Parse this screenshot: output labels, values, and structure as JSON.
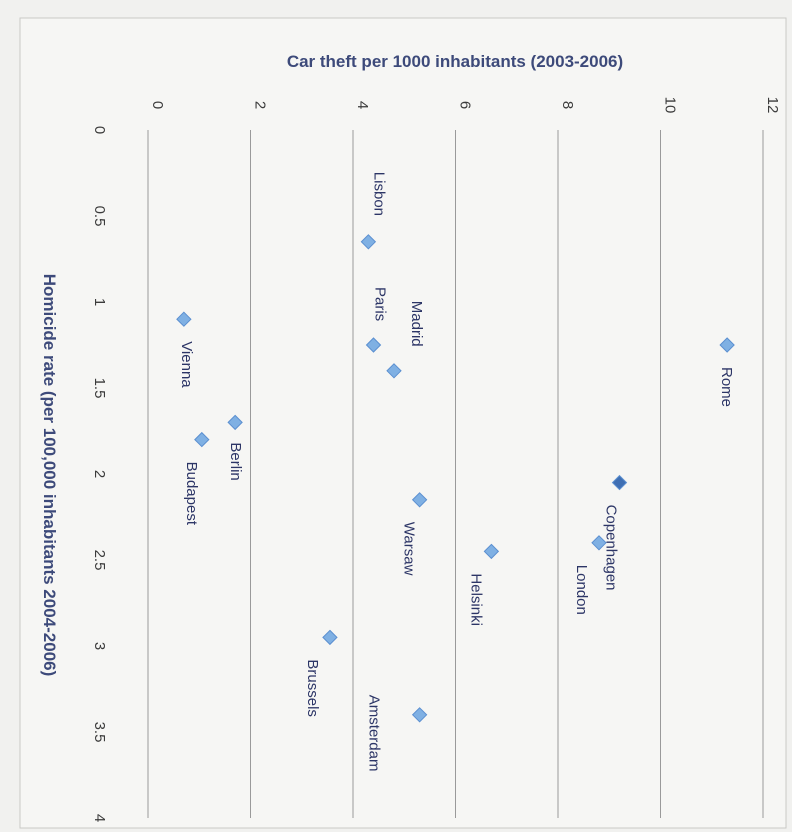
{
  "chart_data": {
    "type": "scatter",
    "title": "",
    "x_axis_label": "Car theft per 1000 inhabitants (2003-2006)",
    "y_axis_label": "Homicide rate (per 100,000 inhabitants 2004-2006)",
    "x_range": [
      0,
      12
    ],
    "y_range": [
      0,
      4
    ],
    "x_ticks": [
      "0",
      "2",
      "4",
      "6",
      "8",
      "10",
      "12"
    ],
    "y_ticks": [
      "0",
      "0.5",
      "1",
      "1.5",
      "2",
      "2.5",
      "3",
      "3.5",
      "4"
    ],
    "orientation": "rotated 90° clockwise",
    "grid": "vertical gridlines only",
    "colors": {
      "marker": "#7fb0e3",
      "marker_dark": "#3f6fb3",
      "gridline": "#9a9a9a",
      "title": "#3d4a7a",
      "label": "#2c3566"
    },
    "points": [
      {
        "label": "Lisbon",
        "x": 4.3,
        "y": 0.65
      },
      {
        "label": "Vienna",
        "x": 0.7,
        "y": 1.1
      },
      {
        "label": "Rome",
        "x": 11.3,
        "y": 1.25
      },
      {
        "label": "Paris",
        "x": 4.4,
        "y": 1.25
      },
      {
        "label": "Madrid",
        "x": 4.8,
        "y": 1.4
      },
      {
        "label": "Berlin",
        "x": 1.7,
        "y": 1.7
      },
      {
        "label": "Budapest",
        "x": 1.05,
        "y": 1.8
      },
      {
        "label": "Copenhagen",
        "x": 9.2,
        "y": 2.05,
        "highlight": true
      },
      {
        "label": "Warsaw",
        "x": 5.3,
        "y": 2.15
      },
      {
        "label": "London",
        "x": 8.8,
        "y": 2.4
      },
      {
        "label": "Helsinki",
        "x": 6.7,
        "y": 2.45
      },
      {
        "label": "Brussels",
        "x": 3.55,
        "y": 2.95
      },
      {
        "label": "Amsterdam",
        "x": 5.3,
        "y": 3.4
      }
    ]
  }
}
